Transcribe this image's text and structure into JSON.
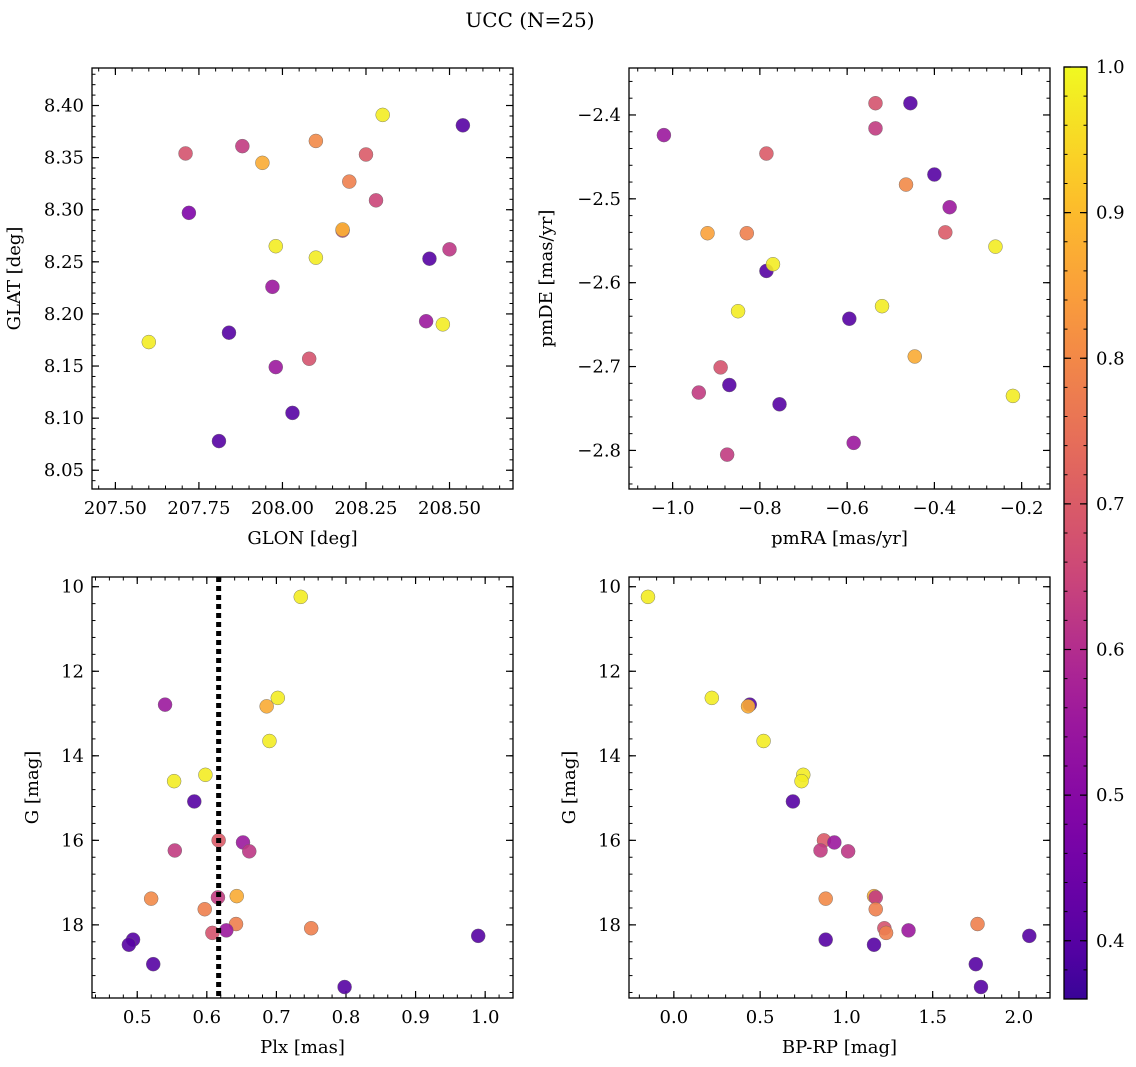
{
  "figure": {
    "title": "UCC (N=25)",
    "colormap": "plasma",
    "colorbar": {
      "min": 0.36,
      "max": 1.0,
      "ticks": [
        0.4,
        0.5,
        0.6,
        0.7,
        0.8,
        0.9,
        1.0
      ],
      "tick_labels": [
        "0.4",
        "0.5",
        "0.6",
        "0.7",
        "0.8",
        "0.9",
        "1.0"
      ]
    }
  },
  "chart_data": [
    {
      "type": "scatter",
      "xlabel": "GLON [deg]",
      "ylabel": "GLAT [deg]",
      "xlim": [
        207.43,
        208.69
      ],
      "ylim": [
        8.032,
        8.436
      ],
      "y_inverted": false,
      "xticks": [
        207.5,
        207.75,
        208.0,
        208.25,
        208.5
      ],
      "xtick_labels": [
        "207.50",
        "207.75",
        "208.00",
        "208.25",
        "208.50"
      ],
      "yticks": [
        8.05,
        8.1,
        8.15,
        8.2,
        8.25,
        8.3,
        8.35,
        8.4
      ],
      "ytick_labels": [
        "8.05",
        "8.10",
        "8.15",
        "8.20",
        "8.25",
        "8.30",
        "8.35",
        "8.40"
      ],
      "points": [
        {
          "x": 207.6,
          "y": 8.173,
          "c": 0.98
        },
        {
          "x": 207.71,
          "y": 8.354,
          "c": 0.68
        },
        {
          "x": 207.72,
          "y": 8.297,
          "c": 0.48
        },
        {
          "x": 207.81,
          "y": 8.078,
          "c": 0.4
        },
        {
          "x": 207.84,
          "y": 8.182,
          "c": 0.4
        },
        {
          "x": 207.88,
          "y": 8.361,
          "c": 0.63
        },
        {
          "x": 207.94,
          "y": 8.345,
          "c": 0.87
        },
        {
          "x": 207.97,
          "y": 8.226,
          "c": 0.55
        },
        {
          "x": 207.98,
          "y": 8.265,
          "c": 0.98
        },
        {
          "x": 207.98,
          "y": 8.149,
          "c": 0.55
        },
        {
          "x": 208.03,
          "y": 8.105,
          "c": 0.4
        },
        {
          "x": 208.08,
          "y": 8.157,
          "c": 0.68
        },
        {
          "x": 208.1,
          "y": 8.366,
          "c": 0.8
        },
        {
          "x": 208.1,
          "y": 8.254,
          "c": 0.98
        },
        {
          "x": 208.18,
          "y": 8.28,
          "c": 0.66
        },
        {
          "x": 208.18,
          "y": 8.281,
          "c": 0.88
        },
        {
          "x": 208.2,
          "y": 8.327,
          "c": 0.78
        },
        {
          "x": 208.25,
          "y": 8.353,
          "c": 0.7
        },
        {
          "x": 208.28,
          "y": 8.309,
          "c": 0.65
        },
        {
          "x": 208.3,
          "y": 8.391,
          "c": 0.98
        },
        {
          "x": 208.43,
          "y": 8.193,
          "c": 0.55
        },
        {
          "x": 208.44,
          "y": 8.253,
          "c": 0.4
        },
        {
          "x": 208.48,
          "y": 8.19,
          "c": 0.98
        },
        {
          "x": 208.5,
          "y": 8.262,
          "c": 0.62
        },
        {
          "x": 208.54,
          "y": 8.381,
          "c": 0.4
        }
      ]
    },
    {
      "type": "scatter",
      "xlabel": "pmRA [mas/yr]",
      "ylabel": "pmDE [mas/yr]",
      "xlim": [
        -1.1,
        -0.135
      ],
      "ylim": [
        -2.846,
        -2.344
      ],
      "y_inverted": false,
      "xticks": [
        -1.0,
        -0.8,
        -0.6,
        -0.4,
        -0.2
      ],
      "xtick_labels": [
        "−1.0",
        "−0.8",
        "−0.6",
        "−0.4",
        "−0.2"
      ],
      "yticks": [
        -2.8,
        -2.7,
        -2.6,
        -2.5,
        -2.4
      ],
      "ytick_labels": [
        "−2.8",
        "−2.7",
        "−2.6",
        "−2.5",
        "−2.4"
      ],
      "points": [
        {
          "x": -1.02,
          "y": -2.424,
          "c": 0.55
        },
        {
          "x": -0.94,
          "y": -2.731,
          "c": 0.63
        },
        {
          "x": -0.92,
          "y": -2.541,
          "c": 0.85
        },
        {
          "x": -0.89,
          "y": -2.701,
          "c": 0.68
        },
        {
          "x": -0.875,
          "y": -2.805,
          "c": 0.63
        },
        {
          "x": -0.87,
          "y": -2.722,
          "c": 0.4
        },
        {
          "x": -0.85,
          "y": -2.634,
          "c": 0.98
        },
        {
          "x": -0.83,
          "y": -2.541,
          "c": 0.78
        },
        {
          "x": -0.785,
          "y": -2.446,
          "c": 0.7
        },
        {
          "x": -0.785,
          "y": -2.586,
          "c": 0.4
        },
        {
          "x": -0.77,
          "y": -2.578,
          "c": 0.98
        },
        {
          "x": -0.755,
          "y": -2.745,
          "c": 0.4
        },
        {
          "x": -0.595,
          "y": -2.643,
          "c": 0.4
        },
        {
          "x": -0.585,
          "y": -2.791,
          "c": 0.55
        },
        {
          "x": -0.535,
          "y": -2.386,
          "c": 0.68
        },
        {
          "x": -0.535,
          "y": -2.416,
          "c": 0.63
        },
        {
          "x": -0.52,
          "y": -2.628,
          "c": 0.98
        },
        {
          "x": -0.465,
          "y": -2.483,
          "c": 0.8
        },
        {
          "x": -0.455,
          "y": -2.386,
          "c": 0.4
        },
        {
          "x": -0.445,
          "y": -2.688,
          "c": 0.87
        },
        {
          "x": -0.4,
          "y": -2.471,
          "c": 0.4
        },
        {
          "x": -0.375,
          "y": -2.54,
          "c": 0.7
        },
        {
          "x": -0.365,
          "y": -2.51,
          "c": 0.55
        },
        {
          "x": -0.26,
          "y": -2.557,
          "c": 0.98
        },
        {
          "x": -0.22,
          "y": -2.735,
          "c": 0.98
        }
      ]
    },
    {
      "type": "scatter",
      "xlabel": "Plx [mas]",
      "ylabel": "G [mag]",
      "xlim": [
        0.435,
        1.04
      ],
      "ylim": [
        9.77,
        19.73
      ],
      "y_inverted": true,
      "vline": {
        "x": 0.617,
        "style": "dotted"
      },
      "xticks": [
        0.5,
        0.6,
        0.7,
        0.8,
        0.9,
        1.0
      ],
      "xtick_labels": [
        "0.5",
        "0.6",
        "0.7",
        "0.8",
        "0.9",
        "1.0"
      ],
      "yticks": [
        10,
        12,
        14,
        16,
        18
      ],
      "ytick_labels": [
        "10",
        "12",
        "14",
        "16",
        "18"
      ],
      "points": [
        {
          "x": 0.735,
          "y": 10.24,
          "c": 0.98
        },
        {
          "x": 0.702,
          "y": 12.63,
          "c": 0.98
        },
        {
          "x": 0.686,
          "y": 12.83,
          "c": 0.87
        },
        {
          "x": 0.54,
          "y": 12.79,
          "c": 0.55
        },
        {
          "x": 0.69,
          "y": 13.65,
          "c": 0.98
        },
        {
          "x": 0.598,
          "y": 14.45,
          "c": 0.98
        },
        {
          "x": 0.553,
          "y": 14.6,
          "c": 0.98
        },
        {
          "x": 0.582,
          "y": 15.08,
          "c": 0.4
        },
        {
          "x": 0.617,
          "y": 16.0,
          "c": 0.7
        },
        {
          "x": 0.652,
          "y": 16.05,
          "c": 0.55
        },
        {
          "x": 0.554,
          "y": 16.24,
          "c": 0.63
        },
        {
          "x": 0.661,
          "y": 16.26,
          "c": 0.62
        },
        {
          "x": 0.643,
          "y": 17.32,
          "c": 0.87
        },
        {
          "x": 0.616,
          "y": 17.35,
          "c": 0.63
        },
        {
          "x": 0.52,
          "y": 17.38,
          "c": 0.8
        },
        {
          "x": 0.597,
          "y": 17.63,
          "c": 0.78
        },
        {
          "x": 0.642,
          "y": 17.98,
          "c": 0.78
        },
        {
          "x": 0.75,
          "y": 18.08,
          "c": 0.78
        },
        {
          "x": 0.628,
          "y": 18.13,
          "c": 0.55
        },
        {
          "x": 0.608,
          "y": 18.19,
          "c": 0.68
        },
        {
          "x": 0.99,
          "y": 18.26,
          "c": 0.4
        },
        {
          "x": 0.494,
          "y": 18.35,
          "c": 0.4
        },
        {
          "x": 0.488,
          "y": 18.47,
          "c": 0.4
        },
        {
          "x": 0.523,
          "y": 18.93,
          "c": 0.4
        },
        {
          "x": 0.798,
          "y": 19.47,
          "c": 0.4
        }
      ]
    },
    {
      "type": "scatter",
      "xlabel": "BP-RP [mag]",
      "ylabel": "G [mag]",
      "xlim": [
        -0.26,
        2.18
      ],
      "ylim": [
        9.77,
        19.73
      ],
      "y_inverted": true,
      "xticks": [
        0.0,
        0.5,
        1.0,
        1.5,
        2.0
      ],
      "xtick_labels": [
        "0.0",
        "0.5",
        "1.0",
        "1.5",
        "2.0"
      ],
      "yticks": [
        10,
        12,
        14,
        16,
        18
      ],
      "ytick_labels": [
        "10",
        "12",
        "14",
        "16",
        "18"
      ],
      "points": [
        {
          "x": -0.15,
          "y": 10.24,
          "c": 0.98
        },
        {
          "x": 0.22,
          "y": 12.63,
          "c": 0.98
        },
        {
          "x": 0.44,
          "y": 12.79,
          "c": 0.4
        },
        {
          "x": 0.43,
          "y": 12.83,
          "c": 0.87
        },
        {
          "x": 0.52,
          "y": 13.65,
          "c": 0.98
        },
        {
          "x": 0.75,
          "y": 14.45,
          "c": 0.98
        },
        {
          "x": 0.74,
          "y": 14.6,
          "c": 0.98
        },
        {
          "x": 0.69,
          "y": 15.08,
          "c": 0.4
        },
        {
          "x": 0.87,
          "y": 16.0,
          "c": 0.7
        },
        {
          "x": 0.93,
          "y": 16.05,
          "c": 0.55
        },
        {
          "x": 0.85,
          "y": 16.24,
          "c": 0.63
        },
        {
          "x": 1.01,
          "y": 16.26,
          "c": 0.62
        },
        {
          "x": 1.16,
          "y": 17.32,
          "c": 0.87
        },
        {
          "x": 1.17,
          "y": 17.35,
          "c": 0.63
        },
        {
          "x": 0.88,
          "y": 17.38,
          "c": 0.8
        },
        {
          "x": 1.17,
          "y": 17.63,
          "c": 0.78
        },
        {
          "x": 1.76,
          "y": 17.98,
          "c": 0.78
        },
        {
          "x": 1.22,
          "y": 18.08,
          "c": 0.68
        },
        {
          "x": 1.36,
          "y": 18.13,
          "c": 0.55
        },
        {
          "x": 1.23,
          "y": 18.19,
          "c": 0.78
        },
        {
          "x": 2.06,
          "y": 18.26,
          "c": 0.4
        },
        {
          "x": 0.88,
          "y": 18.35,
          "c": 0.4
        },
        {
          "x": 1.16,
          "y": 18.47,
          "c": 0.4
        },
        {
          "x": 1.75,
          "y": 18.93,
          "c": 0.4
        },
        {
          "x": 1.78,
          "y": 19.47,
          "c": 0.4
        }
      ]
    }
  ]
}
